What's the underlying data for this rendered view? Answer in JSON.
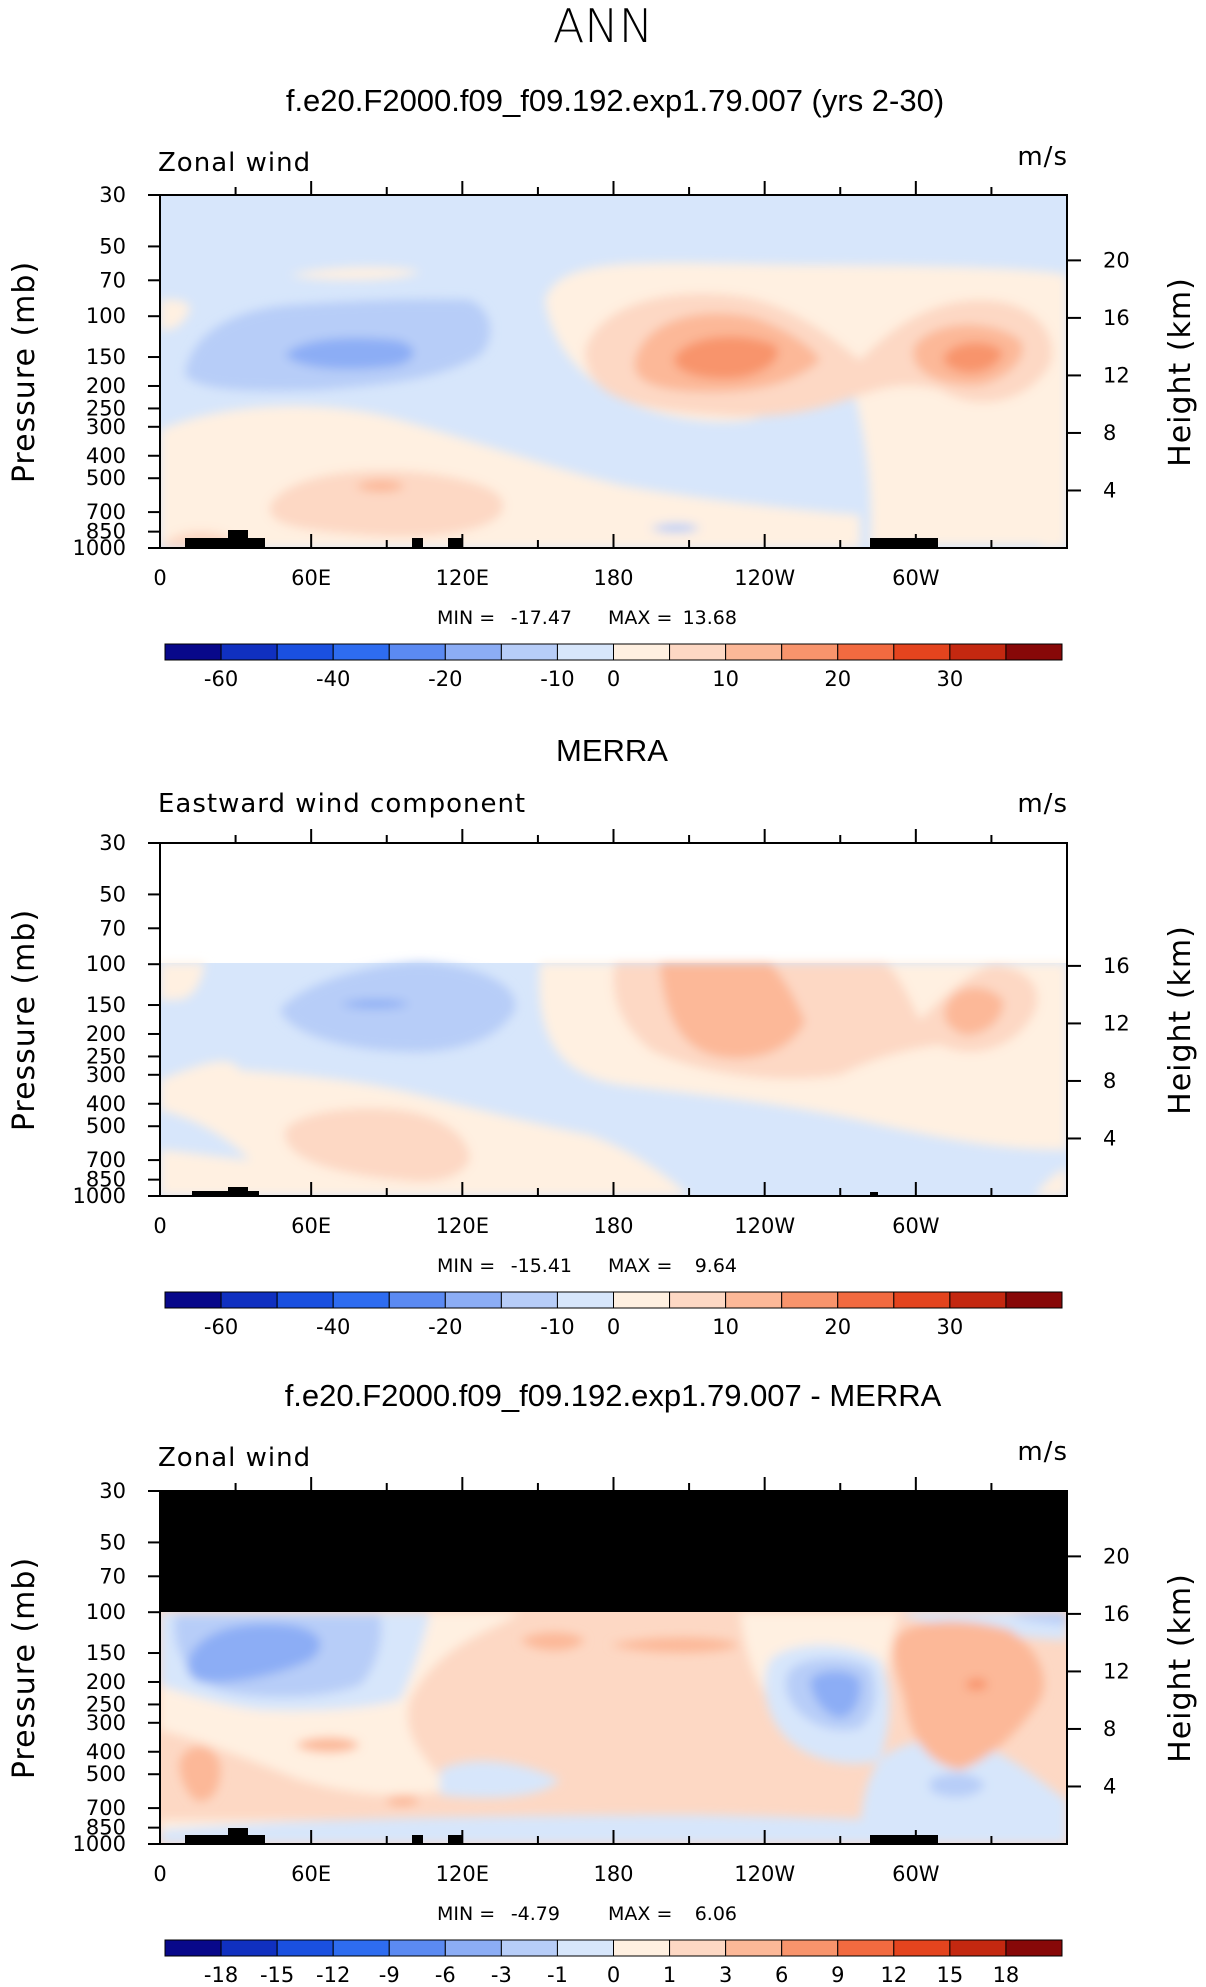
{
  "title": "ANN",
  "colors": {
    "scale": [
      "#08088a",
      "#1030c0",
      "#1a50e0",
      "#2e6cf0",
      "#5b8af2",
      "#8cadf5",
      "#b7cdf8",
      "#d7e6fb",
      "#fff0e1",
      "#fdd8c4",
      "#fcb898",
      "#f8946c",
      "#f26a40",
      "#e4441e",
      "#c42810",
      "#870808"
    ],
    "topography": "#000000",
    "missing": "#ffffff",
    "blocked": "#000000"
  },
  "x_ticks": [
    "0",
    "60E",
    "120E",
    "180",
    "120W",
    "60W"
  ],
  "x_tick_values": [
    0,
    60,
    120,
    180,
    240,
    300
  ],
  "p_ticks": [
    "30",
    "50",
    "70",
    "100",
    "150",
    "200",
    "250",
    "300",
    "400",
    "500",
    "700",
    "850",
    "1000"
  ],
  "p_tick_values": [
    30,
    50,
    70,
    100,
    150,
    200,
    250,
    300,
    400,
    500,
    700,
    850,
    1000
  ],
  "panels": [
    {
      "title": "f.e20.F2000.f09_f09.192.exp1.79.007 (yrs 2-30)",
      "left_label": "Zonal wind",
      "units": "m/s",
      "ylabel": "Pressure (mb)",
      "ylabel_right": "Height (km)",
      "height_ticks": [
        "4",
        "8",
        "12",
        "16",
        "20"
      ],
      "height_tick_values": [
        4,
        8,
        12,
        16,
        20
      ],
      "stats": {
        "min_label": "MIN =",
        "min": "-17.47",
        "max_label": "MAX =",
        "max": "13.68"
      },
      "colorbar_labels": [
        "-60",
        "-40",
        "-20",
        "-10",
        "0",
        "10",
        "20",
        "30"
      ],
      "chart_data": {
        "type": "heatmap",
        "x_range": [
          0,
          360
        ],
        "y_range_mb": [
          1000,
          30
        ],
        "levels": [
          -60,
          -50,
          -40,
          -30,
          -20,
          -15,
          -10,
          -5,
          0,
          5,
          10,
          15,
          20,
          25,
          30
        ],
        "features": [
          {
            "lon": 110,
            "p": 150,
            "value": 13.68,
            "kind": "max"
          },
          {
            "lon": 260,
            "p": 150,
            "value": 11
          },
          {
            "lon": 45,
            "p": 150,
            "value": -17.47,
            "kind": "min"
          },
          {
            "lon": 80,
            "p": 70,
            "value": -6
          },
          {
            "lon": 75,
            "p": 800,
            "value": 6
          },
          {
            "lon": 125,
            "p": 1000,
            "value": -6
          }
        ]
      }
    },
    {
      "title": "MERRA",
      "left_label": "Eastward wind component",
      "units": "m/s",
      "ylabel": "Pressure (mb)",
      "ylabel_right": "Height (km)",
      "height_ticks": [
        "4",
        "8",
        "12",
        "16"
      ],
      "height_tick_values": [
        4,
        8,
        12,
        16
      ],
      "stats": {
        "min_label": "MIN =",
        "min": "-15.41",
        "max_label": "MAX =",
        "max": "9.64"
      },
      "colorbar_labels": [
        "-60",
        "-40",
        "-20",
        "-10",
        "0",
        "10",
        "20",
        "30"
      ],
      "chart_data": {
        "type": "heatmap",
        "x_range": [
          0,
          360
        ],
        "y_range_mb": [
          1000,
          30
        ],
        "data_top_mb": 100,
        "levels": [
          -60,
          -50,
          -40,
          -30,
          -20,
          -15,
          -10,
          -5,
          0,
          5,
          10,
          15,
          20,
          25,
          30
        ],
        "features": [
          {
            "lon": 110,
            "p": 150,
            "value": 9.64,
            "kind": "max"
          },
          {
            "lon": 258,
            "p": 150,
            "value": 8
          },
          {
            "lon": 85,
            "p": 150,
            "value": -15.41,
            "kind": "min"
          },
          {
            "lon": 75,
            "p": 800,
            "value": 5
          }
        ]
      }
    },
    {
      "title": "f.e20.F2000.f09_f09.192.exp1.79.007 - MERRA",
      "left_label": "Zonal wind",
      "units": "m/s",
      "ylabel": "Pressure (mb)",
      "ylabel_right": "Height (km)",
      "height_ticks": [
        "4",
        "8",
        "12",
        "16",
        "20"
      ],
      "height_tick_values": [
        4,
        8,
        12,
        16,
        20
      ],
      "stats": {
        "min_label": "MIN =",
        "min": "-4.79",
        "max_label": "MAX =",
        "max": "6.06"
      },
      "colorbar_labels": [
        "-18",
        "-15",
        "-12",
        "-9",
        "-6",
        "-3",
        "-1",
        "0",
        "1",
        "3",
        "6",
        "9",
        "12",
        "15",
        "18"
      ],
      "chart_data": {
        "type": "heatmap",
        "x_range": [
          0,
          360
        ],
        "y_range_mb": [
          1000,
          30
        ],
        "blocked_above_mb": 100,
        "levels": [
          -18,
          -15,
          -12,
          -9,
          -6,
          -3,
          -1,
          0,
          1,
          3,
          6,
          9,
          12,
          15,
          18
        ],
        "features": [
          {
            "lon": 20,
            "p": 200,
            "value": -4.79,
            "kind": "min"
          },
          {
            "lon": 225,
            "p": 230,
            "value": -4
          },
          {
            "lon": 275,
            "p": 220,
            "value": 6.06,
            "kind": "max"
          },
          {
            "lon": 150,
            "p": 150,
            "value": 4
          },
          {
            "lon": 20,
            "p": 500,
            "value": 3
          }
        ]
      }
    }
  ]
}
